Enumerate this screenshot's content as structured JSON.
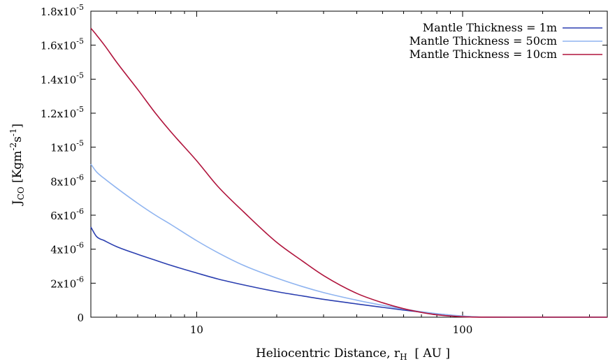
{
  "chart_data": {
    "type": "line",
    "xlabel": {
      "main": "Heliocentric Distance, r",
      "sub": "H",
      "tail": "  [ AU ]"
    },
    "ylabel": {
      "main": "J",
      "sub": "CO",
      "mid": " [Kgm",
      "sup1": "-2",
      "mid2": "s",
      "sup2": "-1",
      "tail": "]"
    },
    "x_scale": "log",
    "xlim": [
      4,
      350
    ],
    "ylim": [
      0,
      1.8e-05
    ],
    "x_ticks": [
      {
        "value": 10,
        "label": "10"
      },
      {
        "value": 100,
        "label": "100"
      }
    ],
    "y_ticks": [
      {
        "value": 0,
        "mantissa": "0",
        "exp": ""
      },
      {
        "value": 2e-06,
        "mantissa": "2x10",
        "exp": "-6"
      },
      {
        "value": 4e-06,
        "mantissa": "4x10",
        "exp": "-6"
      },
      {
        "value": 6e-06,
        "mantissa": "6x10",
        "exp": "-6"
      },
      {
        "value": 8e-06,
        "mantissa": "8x10",
        "exp": "-6"
      },
      {
        "value": 1e-05,
        "mantissa": "1x10",
        "exp": "-5"
      },
      {
        "value": 1.2e-05,
        "mantissa": "1.2x10",
        "exp": "-5"
      },
      {
        "value": 1.4e-05,
        "mantissa": "1.4x10",
        "exp": "-5"
      },
      {
        "value": 1.6e-05,
        "mantissa": "1.6x10",
        "exp": "-5"
      },
      {
        "value": 1.8e-05,
        "mantissa": "1.8x10",
        "exp": "-5"
      }
    ],
    "legend_position": "top-right",
    "grid": false,
    "series": [
      {
        "name": "Mantle Thickness = 1m",
        "color": "#2b3fb0",
        "x": [
          4,
          4.2,
          4.5,
          5,
          6,
          7,
          8,
          10,
          12,
          15,
          20,
          25,
          30,
          40,
          50,
          60,
          70,
          80,
          100,
          120,
          150,
          200,
          350
        ],
        "y": [
          5.3e-06,
          4.75e-06,
          4.5e-06,
          4.15e-06,
          3.7e-06,
          3.35e-06,
          3.05e-06,
          2.6e-06,
          2.25e-06,
          1.9e-06,
          1.5e-06,
          1.25e-06,
          1.05e-06,
          7.8e-07,
          5.8e-07,
          4.2e-07,
          3e-07,
          2e-07,
          6e-08,
          5e-09,
          0,
          0,
          0
        ]
      },
      {
        "name": "Mantle Thickness = 50cm",
        "color": "#8fb4f0",
        "x": [
          4,
          4.2,
          4.5,
          5,
          6,
          7,
          8,
          10,
          12,
          15,
          20,
          25,
          30,
          40,
          50,
          60,
          70,
          80,
          100,
          120,
          150,
          200,
          350
        ],
        "y": [
          9e-06,
          8.55e-06,
          8.15e-06,
          7.6e-06,
          6.7e-06,
          6e-06,
          5.45e-06,
          4.5e-06,
          3.8e-06,
          3.05e-06,
          2.3e-06,
          1.8e-06,
          1.45e-06,
          1e-06,
          7e-07,
          4.8e-07,
          3.2e-07,
          2.1e-07,
          7e-08,
          8e-09,
          0,
          0,
          0
        ]
      },
      {
        "name": "Mantle Thickness = 10cm",
        "color": "#b0143c",
        "x": [
          4,
          4.2,
          4.5,
          5,
          6,
          7,
          8,
          10,
          12,
          15,
          20,
          25,
          30,
          40,
          50,
          60,
          70,
          80,
          100,
          120,
          150,
          200,
          350
        ],
        "y": [
          1.7e-05,
          1.66e-05,
          1.6e-05,
          1.5e-05,
          1.34e-05,
          1.2e-05,
          1.09e-05,
          9.2e-06,
          7.7e-06,
          6.2e-06,
          4.4e-06,
          3.3e-06,
          2.45e-06,
          1.4e-06,
          8.5e-07,
          5e-07,
          2.8e-07,
          1.4e-07,
          3e-08,
          2e-09,
          0,
          0,
          0
        ]
      }
    ]
  }
}
